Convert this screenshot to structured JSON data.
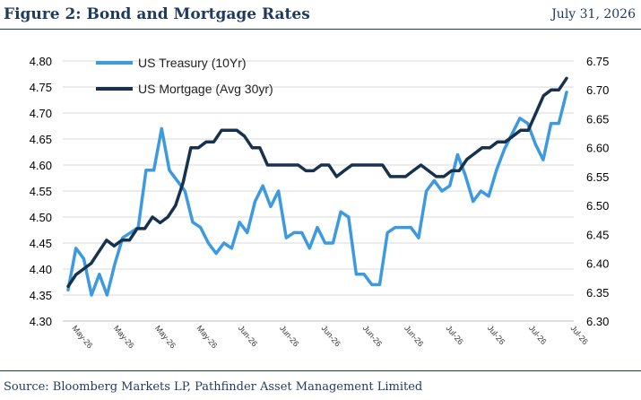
{
  "header": {
    "title": "Figure 2: Bond and Mortgage Rates",
    "date": "July 31, 2026"
  },
  "footer": {
    "source": "Source: Bloomberg Markets LP, Pathfinder Asset Management Limited"
  },
  "chart_data": {
    "type": "line",
    "x_tick_labels": [
      "May-26",
      "May-26",
      "May-26",
      "May-26",
      "Jun-26",
      "Jun-26",
      "Jun-26",
      "Jun-26",
      "Jun-26",
      "Jul-26",
      "Jul-26",
      "Jul-26",
      "Jul-26"
    ],
    "y_left": {
      "ylim": [
        4.3,
        4.8
      ],
      "ticks": [
        "4.30",
        "4.35",
        "4.40",
        "4.45",
        "4.50",
        "4.55",
        "4.60",
        "4.65",
        "4.70",
        "4.75",
        "4.80"
      ]
    },
    "y_right": {
      "ylim": [
        6.3,
        6.75
      ],
      "ticks": [
        "6.30",
        "6.35",
        "6.40",
        "6.45",
        "6.50",
        "6.55",
        "6.60",
        "6.65",
        "6.70",
        "6.75"
      ]
    },
    "grid": "horizontal",
    "legend_position": "top-left",
    "series": [
      {
        "name": "US Treasury (10Yr)",
        "axis": "left",
        "color": "#3d9ae0",
        "values": [
          4.36,
          4.44,
          4.42,
          4.35,
          4.39,
          4.35,
          4.41,
          4.46,
          4.47,
          4.48,
          4.59,
          4.59,
          4.67,
          4.59,
          4.57,
          4.55,
          4.49,
          4.48,
          4.45,
          4.43,
          4.45,
          4.44,
          4.49,
          4.47,
          4.53,
          4.56,
          4.52,
          4.55,
          4.46,
          4.47,
          4.47,
          4.44,
          4.48,
          4.45,
          4.45,
          4.51,
          4.5,
          4.39,
          4.39,
          4.37,
          4.37,
          4.47,
          4.48,
          4.48,
          4.48,
          4.46,
          4.55,
          4.57,
          4.55,
          4.56,
          4.62,
          4.58,
          4.53,
          4.55,
          4.54,
          4.59,
          4.63,
          4.66,
          4.69,
          4.68,
          4.64,
          4.61,
          4.68,
          4.68,
          4.74
        ]
      },
      {
        "name": "US Mortgage (Avg 30yr)",
        "axis": "right",
        "color": "#16324f",
        "values": [
          6.36,
          6.38,
          6.39,
          6.4,
          6.42,
          6.44,
          6.43,
          6.44,
          6.44,
          6.46,
          6.46,
          6.48,
          6.47,
          6.48,
          6.5,
          6.54,
          6.6,
          6.6,
          6.61,
          6.61,
          6.63,
          6.63,
          6.63,
          6.62,
          6.6,
          6.6,
          6.57,
          6.57,
          6.57,
          6.57,
          6.57,
          6.56,
          6.56,
          6.57,
          6.57,
          6.55,
          6.56,
          6.57,
          6.57,
          6.57,
          6.57,
          6.57,
          6.55,
          6.55,
          6.55,
          6.56,
          6.57,
          6.56,
          6.55,
          6.55,
          6.56,
          6.56,
          6.58,
          6.59,
          6.6,
          6.6,
          6.61,
          6.61,
          6.62,
          6.63,
          6.63,
          6.66,
          6.69,
          6.7,
          6.7,
          6.72
        ]
      }
    ]
  }
}
